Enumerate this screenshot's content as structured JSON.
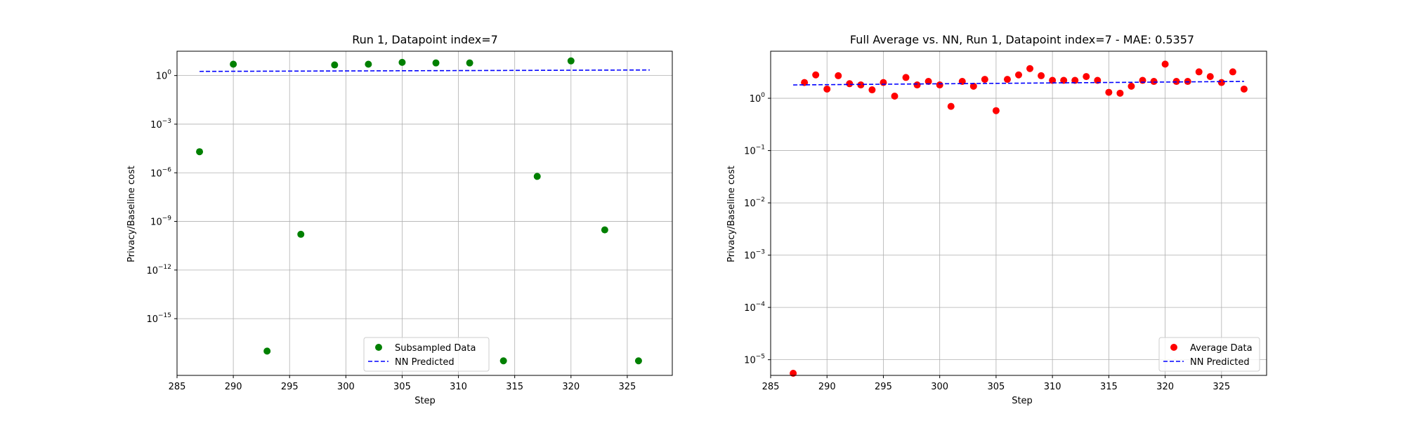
{
  "chart_data": [
    {
      "type": "scatter",
      "title": "Run 1, Datapoint index=7",
      "xlabel": "Step",
      "ylabel": "Privacy/Baseline cost",
      "xlim": [
        285,
        329
      ],
      "ylim_exp": [
        -18.5,
        1.5
      ],
      "yscale": "log",
      "grid": true,
      "legend_loc": "lower center",
      "x_ticks": [
        285,
        290,
        295,
        300,
        305,
        310,
        315,
        320,
        325
      ],
      "y_ticks": [
        {
          "exp": 0,
          "base": "10",
          "sup": "0"
        },
        {
          "exp": -3,
          "base": "10",
          "sup": "−3"
        },
        {
          "exp": -6,
          "base": "10",
          "sup": "−6"
        },
        {
          "exp": -9,
          "base": "10",
          "sup": "−9"
        },
        {
          "exp": -12,
          "base": "10",
          "sup": "−12"
        },
        {
          "exp": -15,
          "base": "10",
          "sup": "−15"
        }
      ],
      "series": [
        {
          "name": "Subsampled Data",
          "kind": "scatter",
          "color": "#008000",
          "points": [
            {
              "x": 287,
              "y": 2e-05
            },
            {
              "x": 290,
              "y": 5.0
            },
            {
              "x": 293,
              "y": 1e-17
            },
            {
              "x": 296,
              "y": 1.6e-10
            },
            {
              "x": 299,
              "y": 4.5
            },
            {
              "x": 302,
              "y": 5.0
            },
            {
              "x": 305,
              "y": 6.5
            },
            {
              "x": 308,
              "y": 6.0
            },
            {
              "x": 311,
              "y": 6.0
            },
            {
              "x": 314,
              "y": 2.5e-18
            },
            {
              "x": 317,
              "y": 6e-07
            },
            {
              "x": 320,
              "y": 8.0
            },
            {
              "x": 323,
              "y": 3e-10
            },
            {
              "x": 326,
              "y": 2.5e-18
            }
          ]
        },
        {
          "name": "NN Predicted",
          "kind": "dashed-line",
          "color": "#0000ff",
          "points": [
            {
              "x": 287,
              "y": 1.8
            },
            {
              "x": 327,
              "y": 2.2
            }
          ]
        }
      ]
    },
    {
      "type": "scatter",
      "title": "Full Average vs. NN, Run 1, Datapoint index=7 - MAE: 0.5357",
      "xlabel": "Step",
      "ylabel": "Privacy/Baseline cost",
      "xlim": [
        285,
        329
      ],
      "ylim_exp": [
        -5.3,
        0.9
      ],
      "yscale": "log",
      "grid": true,
      "legend_loc": "lower right",
      "x_ticks": [
        285,
        290,
        295,
        300,
        305,
        310,
        315,
        320,
        325
      ],
      "y_ticks": [
        {
          "exp": 0,
          "base": "10",
          "sup": "0"
        },
        {
          "exp": -1,
          "base": "10",
          "sup": "−1"
        },
        {
          "exp": -2,
          "base": "10",
          "sup": "−2"
        },
        {
          "exp": -3,
          "base": "10",
          "sup": "−3"
        },
        {
          "exp": -4,
          "base": "10",
          "sup": "−4"
        },
        {
          "exp": -5,
          "base": "10",
          "sup": "−5"
        }
      ],
      "series": [
        {
          "name": "Average Data",
          "kind": "scatter",
          "color": "#ff0000",
          "points": [
            {
              "x": 287,
              "y": 5.5e-06
            },
            {
              "x": 288,
              "y": 2.0
            },
            {
              "x": 289,
              "y": 2.8
            },
            {
              "x": 290,
              "y": 1.5
            },
            {
              "x": 291,
              "y": 2.7
            },
            {
              "x": 292,
              "y": 1.9
            },
            {
              "x": 293,
              "y": 1.8
            },
            {
              "x": 294,
              "y": 1.45
            },
            {
              "x": 295,
              "y": 2.0
            },
            {
              "x": 296,
              "y": 1.1
            },
            {
              "x": 297,
              "y": 2.5
            },
            {
              "x": 298,
              "y": 1.8
            },
            {
              "x": 299,
              "y": 2.1
            },
            {
              "x": 300,
              "y": 1.8
            },
            {
              "x": 301,
              "y": 0.7
            },
            {
              "x": 302,
              "y": 2.1
            },
            {
              "x": 303,
              "y": 1.7
            },
            {
              "x": 304,
              "y": 2.3
            },
            {
              "x": 305,
              "y": 0.58
            },
            {
              "x": 306,
              "y": 2.3
            },
            {
              "x": 307,
              "y": 2.8
            },
            {
              "x": 308,
              "y": 3.7
            },
            {
              "x": 309,
              "y": 2.7
            },
            {
              "x": 310,
              "y": 2.2
            },
            {
              "x": 311,
              "y": 2.2
            },
            {
              "x": 312,
              "y": 2.2
            },
            {
              "x": 313,
              "y": 2.6
            },
            {
              "x": 314,
              "y": 2.2
            },
            {
              "x": 315,
              "y": 1.3
            },
            {
              "x": 316,
              "y": 1.25
            },
            {
              "x": 317,
              "y": 1.7
            },
            {
              "x": 318,
              "y": 2.2
            },
            {
              "x": 319,
              "y": 2.1
            },
            {
              "x": 320,
              "y": 4.5
            },
            {
              "x": 321,
              "y": 2.1
            },
            {
              "x": 322,
              "y": 2.1
            },
            {
              "x": 323,
              "y": 3.2
            },
            {
              "x": 324,
              "y": 2.6
            },
            {
              "x": 325,
              "y": 2.0
            },
            {
              "x": 326,
              "y": 3.2
            },
            {
              "x": 327,
              "y": 1.5
            }
          ]
        },
        {
          "name": "NN Predicted",
          "kind": "dashed-line",
          "color": "#0000ff",
          "points": [
            {
              "x": 287,
              "y": 1.8
            },
            {
              "x": 327,
              "y": 2.1
            }
          ]
        }
      ]
    }
  ]
}
